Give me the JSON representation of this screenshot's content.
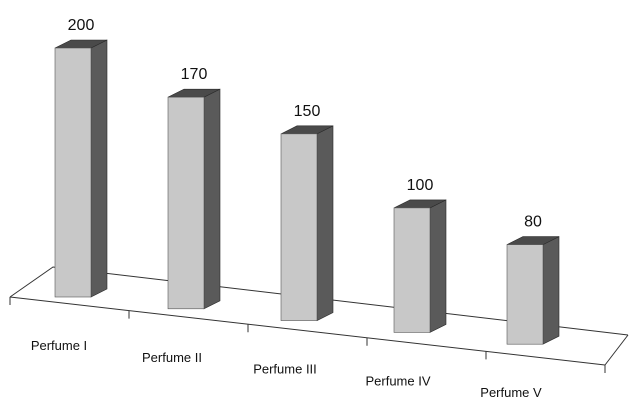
{
  "chart_data": {
    "type": "bar",
    "style": "3d",
    "categories": [
      "Perfume I",
      "Perfume II",
      "Perfume III",
      "Perfume IV",
      "Perfume V"
    ],
    "values": [
      200,
      170,
      150,
      100,
      80
    ],
    "data_labels": [
      "200",
      "170",
      "150",
      "100",
      "80"
    ],
    "title": "",
    "xlabel": "",
    "ylabel": "",
    "ylim": [
      0,
      200
    ],
    "grid": false,
    "legend": "none",
    "colors": {
      "front": "#c8c8c8",
      "side": "#5a5a5a",
      "top": "#4a4a4a",
      "axis": "#333333"
    }
  }
}
